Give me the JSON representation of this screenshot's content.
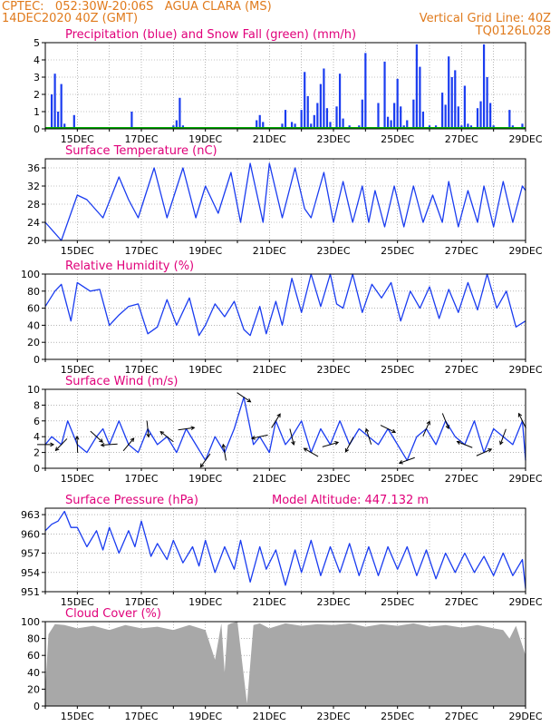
{
  "header": {
    "line1": "CPTEC:   052:30W-20:06S   AGUA CLARA (MS)",
    "line2": "14DEC2020 40Z (GMT)",
    "right1": "Vertical Grid Line: 40Z",
    "right2": "TQ0126L028"
  },
  "colors": {
    "accent": "#e07a1c",
    "title": "#e0007a",
    "line": "#1a3cf0",
    "snow": "#00aa00",
    "cloud": "#a8a8a8"
  },
  "x_ticks": [
    "15DEC",
    "17DEC",
    "19DEC",
    "21DEC",
    "23DEC",
    "25DEC",
    "27DEC",
    "29DEC"
  ],
  "chart_data": [
    {
      "id": "precip",
      "type": "bar",
      "title": "Precipitation (blue) and Snow Fall (green) (mm/h)",
      "x": [
        14.2,
        14.3,
        14.4,
        14.5,
        14.6,
        14.9,
        16.7,
        18.0,
        18.1,
        18.2,
        18.3,
        20.6,
        20.7,
        20.8,
        21.4,
        21.5,
        21.7,
        21.8,
        22.0,
        22.1,
        22.2,
        22.3,
        22.4,
        22.5,
        22.6,
        22.7,
        22.8,
        22.9,
        23.1,
        23.2,
        23.3,
        23.5,
        23.8,
        23.9,
        24.0,
        24.1,
        24.4,
        24.6,
        24.7,
        24.8,
        24.9,
        25.0,
        25.1,
        25.2,
        25.3,
        25.5,
        25.6,
        25.7,
        25.8,
        26.0,
        26.2,
        26.4,
        26.5,
        26.6,
        26.7,
        26.8,
        26.9,
        27.0,
        27.1,
        27.2,
        27.3,
        27.5,
        27.6,
        27.7,
        27.8,
        27.9,
        28.0,
        28.5,
        28.6,
        28.9
      ],
      "values": [
        2.0,
        3.2,
        1.0,
        2.6,
        0.3,
        0.8,
        1.0,
        0.2,
        0.5,
        1.8,
        0.2,
        0.5,
        0.8,
        0.4,
        0.3,
        1.1,
        0.4,
        0.3,
        1.1,
        3.3,
        1.9,
        0.3,
        0.8,
        1.5,
        2.6,
        3.5,
        1.2,
        0.4,
        1.3,
        3.2,
        0.6,
        0.2,
        0.2,
        1.7,
        4.4,
        0.1,
        1.5,
        3.9,
        0.7,
        0.5,
        1.5,
        2.9,
        1.3,
        0.2,
        0.5,
        1.7,
        4.9,
        3.6,
        1.0,
        0.2,
        0.2,
        2.1,
        1.4,
        4.2,
        3.0,
        3.4,
        1.3,
        0.2,
        2.5,
        0.3,
        0.2,
        1.2,
        1.6,
        4.9,
        3.0,
        1.5,
        0.2,
        1.1,
        0.2,
        0.3
      ],
      "snow": 0.0,
      "ylim": [
        0,
        5
      ],
      "yticks": [
        0,
        1,
        2,
        3,
        4,
        5
      ],
      "xlim": [
        14,
        29
      ]
    },
    {
      "id": "temp",
      "type": "line",
      "title": "Surface Temperature (nC)",
      "x": [
        14.0,
        14.5,
        15.0,
        15.3,
        15.8,
        16.3,
        16.6,
        16.9,
        17.4,
        17.8,
        18.3,
        18.7,
        19.0,
        19.4,
        19.8,
        20.1,
        20.4,
        20.8,
        21.0,
        21.4,
        21.8,
        22.1,
        22.3,
        22.7,
        23.0,
        23.3,
        23.6,
        23.9,
        24.1,
        24.3,
        24.6,
        24.9,
        25.2,
        25.5,
        25.8,
        26.1,
        26.4,
        26.6,
        26.9,
        27.2,
        27.5,
        27.7,
        28.0,
        28.3,
        28.6,
        28.9,
        29.0
      ],
      "values": [
        24,
        20,
        30,
        29,
        25,
        34,
        29,
        25,
        36,
        25,
        36,
        25,
        32,
        26,
        35,
        24,
        37,
        24,
        37,
        25,
        36,
        27,
        25,
        35,
        24,
        33,
        24,
        32,
        24,
        31,
        23,
        32,
        23,
        32,
        24,
        30,
        24,
        33,
        23,
        31,
        24,
        32,
        23,
        33,
        24,
        32,
        31
      ],
      "ylim": [
        20,
        38
      ],
      "yticks": [
        20,
        24,
        28,
        32,
        36
      ],
      "xlim": [
        14,
        29
      ]
    },
    {
      "id": "rh",
      "type": "line",
      "title": "Relative Humidity (%)",
      "x": [
        14.0,
        14.3,
        14.5,
        14.8,
        15.0,
        15.4,
        15.7,
        16.0,
        16.3,
        16.6,
        16.9,
        17.2,
        17.5,
        17.8,
        18.1,
        18.5,
        18.8,
        19.0,
        19.3,
        19.6,
        19.9,
        20.2,
        20.4,
        20.7,
        20.9,
        21.2,
        21.4,
        21.7,
        22.0,
        22.3,
        22.6,
        22.9,
        23.1,
        23.3,
        23.6,
        23.9,
        24.2,
        24.5,
        24.8,
        25.1,
        25.4,
        25.7,
        26.0,
        26.3,
        26.6,
        26.9,
        27.2,
        27.5,
        27.8,
        28.1,
        28.4,
        28.7,
        29.0
      ],
      "values": [
        62,
        80,
        88,
        45,
        90,
        80,
        82,
        40,
        52,
        62,
        65,
        30,
        38,
        70,
        40,
        72,
        28,
        40,
        65,
        50,
        68,
        35,
        28,
        62,
        30,
        68,
        40,
        95,
        55,
        100,
        62,
        100,
        65,
        60,
        100,
        55,
        88,
        72,
        90,
        45,
        80,
        60,
        85,
        48,
        82,
        55,
        90,
        58,
        100,
        60,
        80,
        38,
        45
      ],
      "ylim": [
        0,
        100
      ],
      "yticks": [
        0,
        20,
        40,
        60,
        80,
        100
      ],
      "xlim": [
        14,
        29
      ]
    },
    {
      "id": "wind",
      "type": "line",
      "title": "Surface Wind (m/s)",
      "x": [
        14.0,
        14.2,
        14.5,
        14.7,
        15.0,
        15.3,
        15.6,
        15.8,
        16.0,
        16.3,
        16.6,
        16.9,
        17.2,
        17.5,
        17.8,
        18.1,
        18.4,
        18.7,
        19.0,
        19.3,
        19.6,
        19.9,
        20.2,
        20.5,
        20.7,
        21.0,
        21.2,
        21.5,
        21.7,
        22.0,
        22.3,
        22.6,
        22.9,
        23.2,
        23.5,
        23.8,
        24.1,
        24.4,
        24.7,
        25.0,
        25.3,
        25.6,
        25.9,
        26.2,
        26.5,
        26.8,
        27.1,
        27.4,
        27.7,
        28.0,
        28.3,
        28.6,
        28.9,
        29.0
      ],
      "values": [
        3,
        4,
        3,
        6,
        3,
        2,
        4,
        5,
        3,
        6,
        3,
        2,
        5,
        3,
        4,
        2,
        5,
        3,
        1,
        4,
        2,
        5,
        9,
        3,
        4,
        2,
        6,
        3,
        4,
        6,
        2,
        5,
        3,
        6,
        3,
        5,
        4,
        3,
        5,
        3,
        1,
        4,
        5,
        3,
        6,
        4,
        3,
        6,
        2,
        5,
        4,
        3,
        6,
        1
      ],
      "ylim": [
        0,
        10
      ],
      "yticks": [
        0,
        2,
        4,
        6,
        8,
        10
      ],
      "xlim": [
        14,
        29
      ]
    },
    {
      "id": "pres",
      "type": "line",
      "title": "Surface Pressure (hPa)",
      "annotation": "Model Altitude: 447.132 m",
      "x": [
        14.0,
        14.2,
        14.4,
        14.6,
        14.8,
        15.0,
        15.3,
        15.6,
        15.8,
        16.0,
        16.3,
        16.6,
        16.8,
        17.0,
        17.3,
        17.5,
        17.8,
        18.0,
        18.3,
        18.6,
        18.8,
        19.0,
        19.3,
        19.6,
        19.9,
        20.1,
        20.4,
        20.7,
        20.9,
        21.2,
        21.5,
        21.8,
        22.0,
        22.3,
        22.6,
        22.9,
        23.2,
        23.5,
        23.8,
        24.1,
        24.4,
        24.7,
        25.0,
        25.3,
        25.6,
        25.9,
        26.2,
        26.5,
        26.8,
        27.1,
        27.4,
        27.7,
        28.0,
        28.3,
        28.6,
        28.9,
        29.0
      ],
      "values": [
        960.5,
        961.5,
        962.0,
        963.5,
        961.0,
        961.0,
        958.0,
        960.5,
        957.5,
        961.0,
        957.0,
        960.5,
        958.0,
        962.0,
        956.5,
        958.5,
        956.0,
        959.0,
        955.5,
        958.0,
        955.0,
        959.0,
        954.0,
        958.0,
        954.5,
        959.0,
        952.5,
        958.0,
        954.5,
        957.5,
        952.0,
        957.5,
        954.0,
        959.0,
        953.5,
        958.0,
        954.0,
        958.5,
        953.5,
        958.0,
        953.5,
        958.0,
        954.5,
        958.0,
        953.5,
        957.5,
        953.0,
        957.0,
        954.0,
        957.0,
        954.0,
        956.5,
        953.5,
        957.0,
        953.5,
        956.0,
        951.5
      ],
      "ylim": [
        951,
        964
      ],
      "yticks": [
        951,
        954,
        957,
        960,
        963
      ],
      "xlim": [
        14,
        29
      ]
    },
    {
      "id": "cloud",
      "type": "area",
      "title": "Cloud Cover (%)",
      "x": [
        14.0,
        14.1,
        14.3,
        14.6,
        15.0,
        15.5,
        16.0,
        16.5,
        17.0,
        17.5,
        18.0,
        18.5,
        19.0,
        19.3,
        19.5,
        19.6,
        19.7,
        19.8,
        20.0,
        20.3,
        20.5,
        20.7,
        21.0,
        21.5,
        22.0,
        22.5,
        23.0,
        23.5,
        24.0,
        24.5,
        25.0,
        25.5,
        26.0,
        26.5,
        27.0,
        27.5,
        28.0,
        28.3,
        28.5,
        28.7,
        29.0
      ],
      "values": [
        20,
        85,
        97,
        96,
        92,
        95,
        90,
        96,
        92,
        94,
        90,
        96,
        90,
        55,
        98,
        40,
        96,
        98,
        100,
        3,
        96,
        98,
        92,
        98,
        95,
        97,
        96,
        98,
        94,
        97,
        95,
        98,
        94,
        96,
        93,
        96,
        92,
        90,
        80,
        95,
        60
      ],
      "ylim": [
        0,
        100
      ],
      "yticks": [
        0,
        20,
        40,
        60,
        80,
        100
      ],
      "xlim": [
        14,
        29
      ]
    }
  ]
}
